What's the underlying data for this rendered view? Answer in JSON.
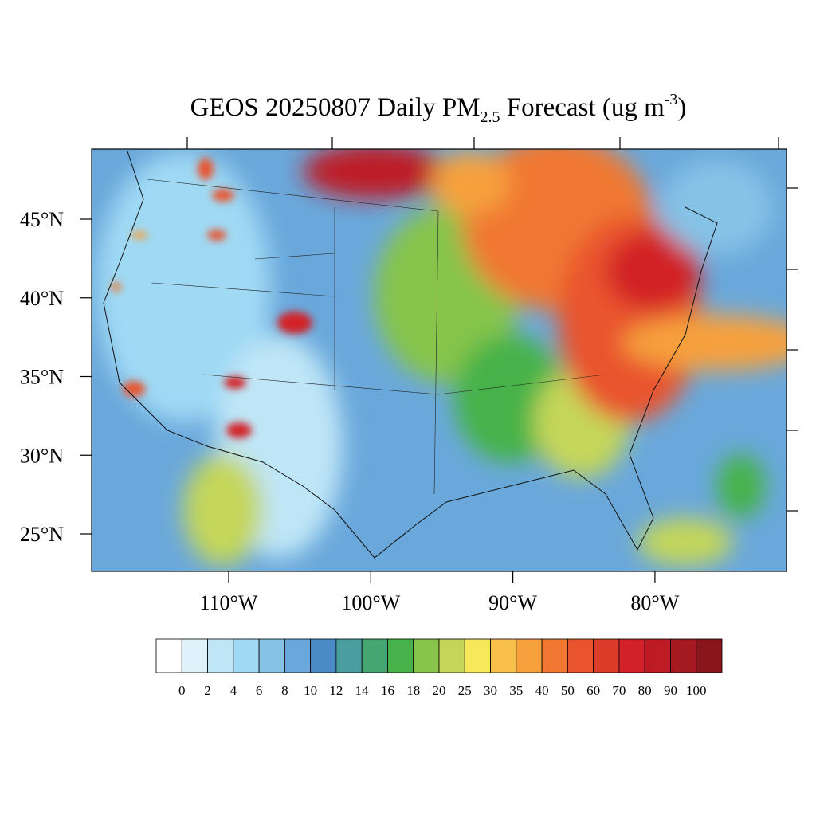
{
  "map": {
    "title": {
      "main": "GEOS 20250807 Daily PM",
      "sub": "2.5",
      "mid": " Forecast (ug m",
      "sup": "-3",
      "end": ")"
    },
    "lat_labels": [
      {
        "value": 45,
        "label": "45°N"
      },
      {
        "value": 40,
        "label": "40°N"
      },
      {
        "value": 35,
        "label": "35°N"
      },
      {
        "value": 30,
        "label": "30°N"
      },
      {
        "value": 25,
        "label": "25°N"
      }
    ],
    "lon_labels": [
      {
        "value": 110,
        "label": "110°W"
      },
      {
        "value": 100,
        "label": "100°W"
      },
      {
        "value": 90,
        "label": "90°W"
      },
      {
        "value": 80,
        "label": "80°W"
      }
    ],
    "colorbar": {
      "levels": [
        0,
        2,
        4,
        6,
        8,
        10,
        12,
        14,
        16,
        18,
        20,
        25,
        30,
        35,
        40,
        50,
        60,
        70,
        80,
        90,
        100
      ],
      "colors": [
        "#ffffff",
        "#dff2fb",
        "#bfe6f7",
        "#9fd9f4",
        "#85c2e6",
        "#6aa8db",
        "#4a8bc8",
        "#4b9ea0",
        "#45a672",
        "#47b24a",
        "#86c44c",
        "#c4d65a",
        "#f7e75a",
        "#f8c04a",
        "#f6a03e",
        "#f07832",
        "#e9542e",
        "#dd3c2a",
        "#d22128",
        "#bd1c25",
        "#a41a20",
        "#8a161b"
      ]
    }
  }
}
